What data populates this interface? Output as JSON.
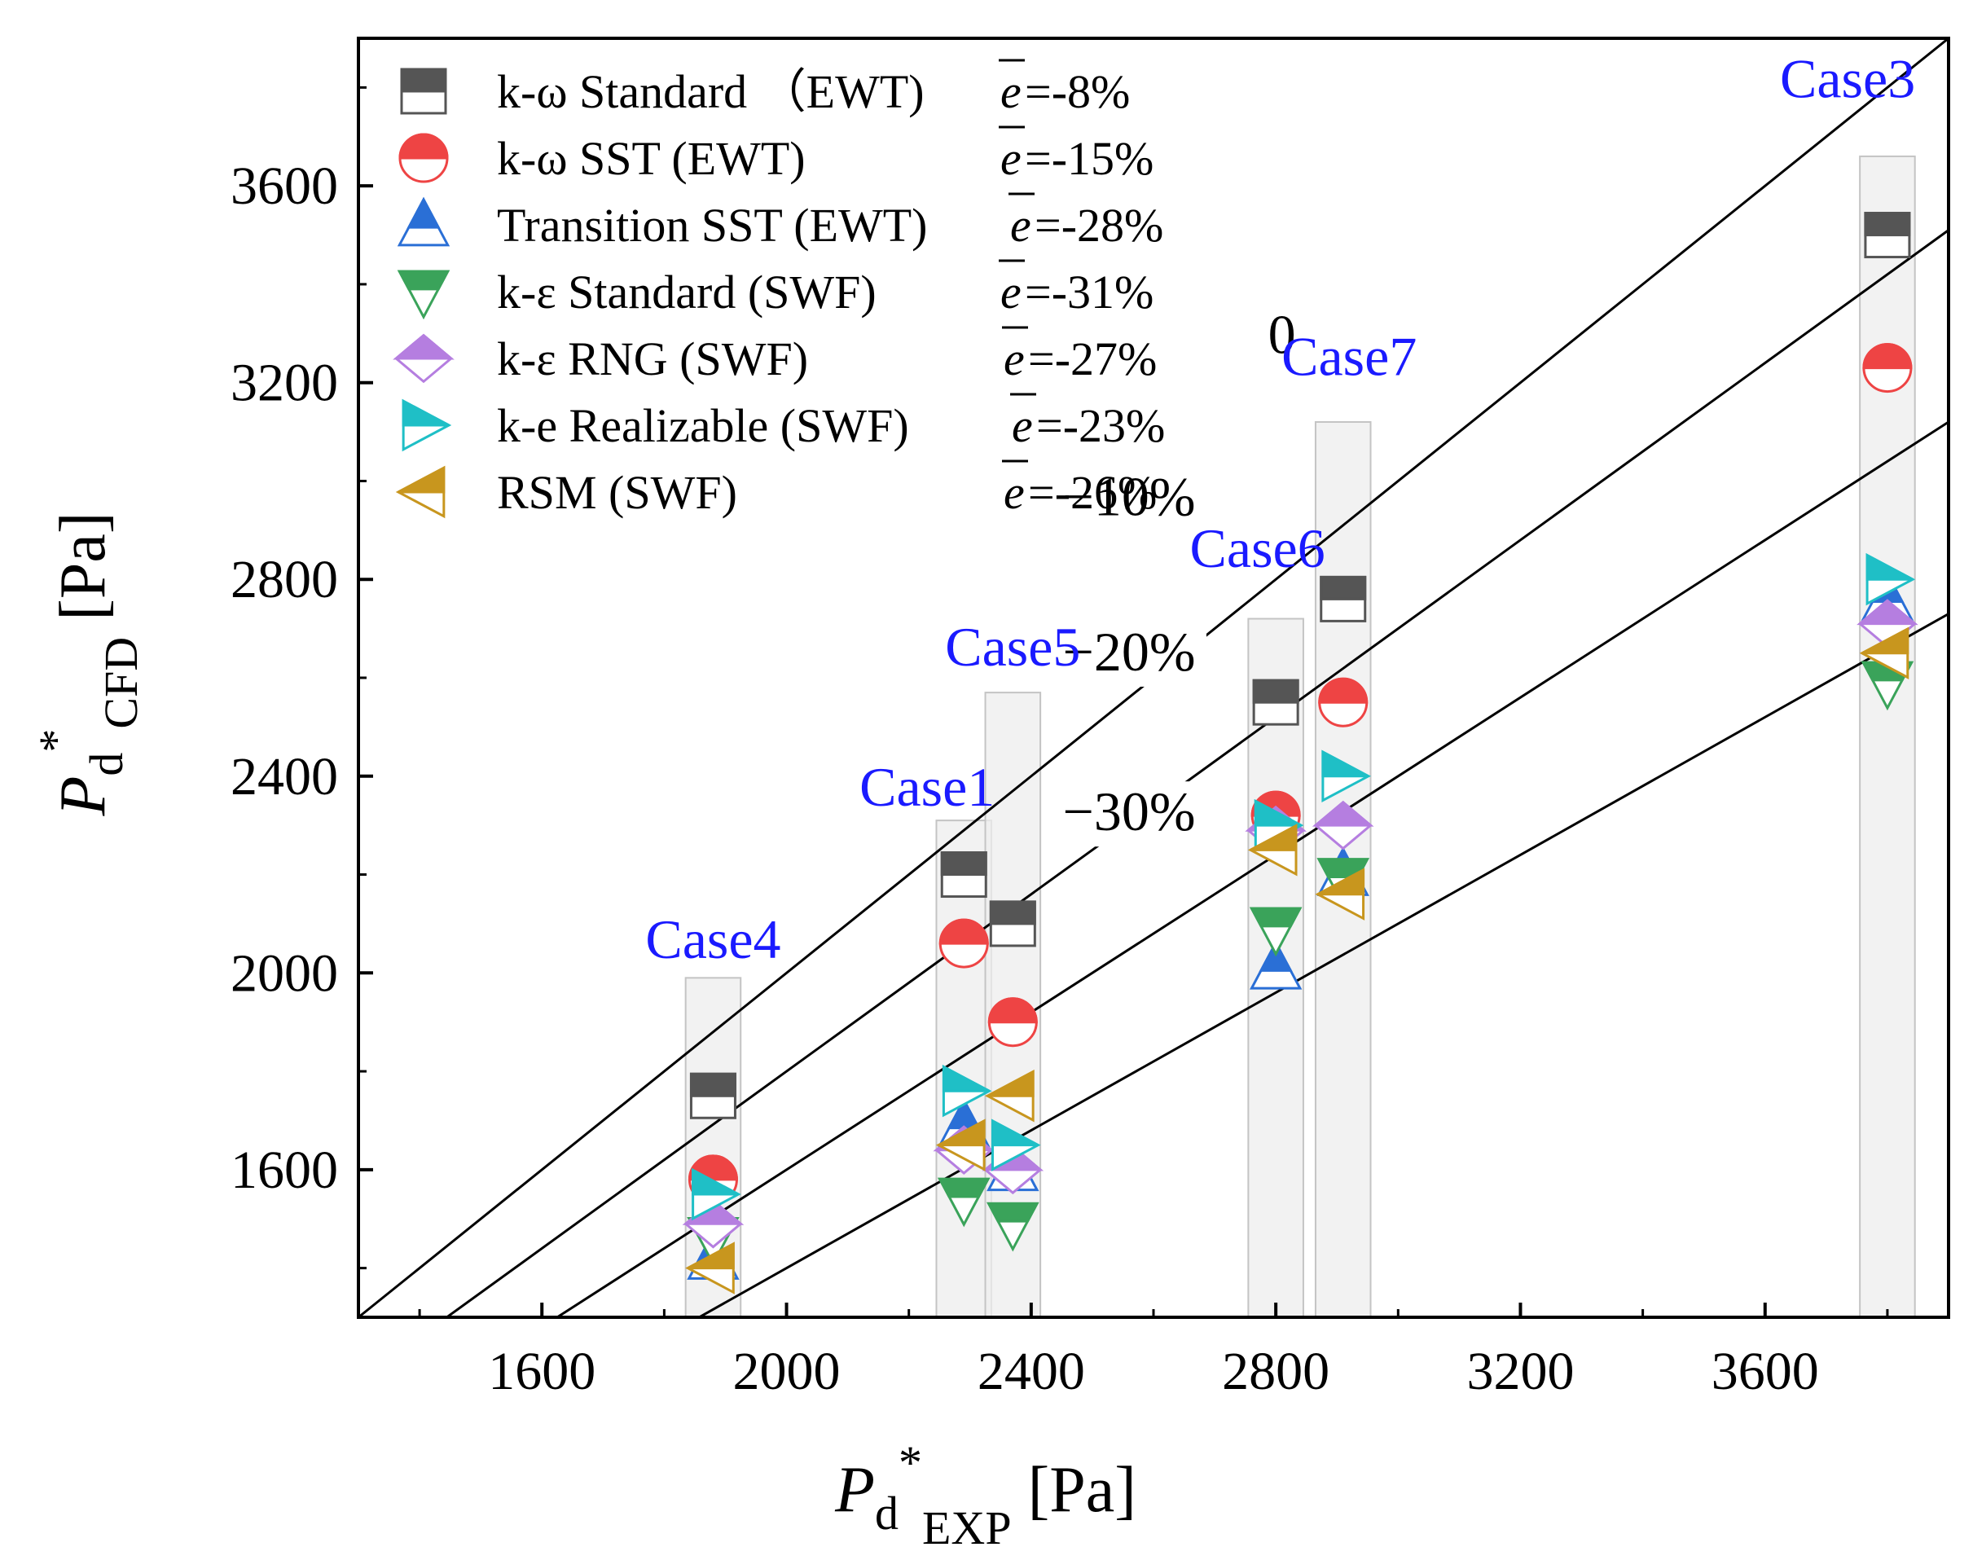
{
  "chart_data": {
    "type": "scatter",
    "title": "",
    "xlabel": {
      "main": "P",
      "sub": "d",
      "sup": "*",
      "sub2": "EXP",
      "unit": " [Pa]"
    },
    "ylabel": {
      "main": "P",
      "sub": "d",
      "sup": "*",
      "sub2": "CFD",
      "unit": " [Pa]"
    },
    "xlim": [
      1300,
      3900
    ],
    "ylim": [
      1300,
      3900
    ],
    "xticks": [
      1600,
      2000,
      2400,
      2800,
      3200,
      3600
    ],
    "yticks": [
      1600,
      2000,
      2400,
      2800,
      3200,
      3600
    ],
    "xtick_labels": [
      "1600",
      "2000",
      "2400",
      "2800",
      "3200",
      "3600"
    ],
    "ytick_labels": [
      "1600",
      "2000",
      "2400",
      "2800",
      "3200",
      "3600"
    ],
    "legend_position": "top-left",
    "series": [
      {
        "name": "k-ω Standard （EWT)",
        "error_label": "=-8%",
        "marker": "square",
        "color": "#555555",
        "points": [
          {
            "x": 1880,
            "y": 1750
          },
          {
            "x": 2290,
            "y": 2200
          },
          {
            "x": 2370,
            "y": 2100
          },
          {
            "x": 2800,
            "y": 2550
          },
          {
            "x": 2910,
            "y": 2760
          },
          {
            "x": 3800,
            "y": 3500
          }
        ]
      },
      {
        "name": "k-ω SST (EWT)",
        "error_label": "=-15%",
        "marker": "circle",
        "color": "#ee4444",
        "points": [
          {
            "x": 1880,
            "y": 1580
          },
          {
            "x": 2290,
            "y": 2060
          },
          {
            "x": 2370,
            "y": 1900
          },
          {
            "x": 2800,
            "y": 2320
          },
          {
            "x": 2910,
            "y": 2550
          },
          {
            "x": 3800,
            "y": 3230
          }
        ]
      },
      {
        "name": "Transition SST (EWT)",
        "error_label": "=-28%",
        "marker": "triangle-up",
        "color": "#2a6fd6",
        "points": [
          {
            "x": 1880,
            "y": 1420
          },
          {
            "x": 2290,
            "y": 1690
          },
          {
            "x": 2370,
            "y": 1600
          },
          {
            "x": 2800,
            "y": 2010
          },
          {
            "x": 2910,
            "y": 2200
          },
          {
            "x": 3800,
            "y": 2760
          }
        ]
      },
      {
        "name": "k-ε Standard (SWF)",
        "error_label": "=-31%",
        "marker": "triangle-down",
        "color": "#3aa35a",
        "points": [
          {
            "x": 1880,
            "y": 1460
          },
          {
            "x": 2290,
            "y": 1540
          },
          {
            "x": 2370,
            "y": 1490
          },
          {
            "x": 2800,
            "y": 2090
          },
          {
            "x": 2910,
            "y": 2190
          },
          {
            "x": 3800,
            "y": 2590
          }
        ]
      },
      {
        "name": "k-ε RNG (SWF)",
        "error_label": "=-27%",
        "marker": "diamond",
        "color": "#b57ee0",
        "points": [
          {
            "x": 1880,
            "y": 1490
          },
          {
            "x": 2290,
            "y": 1640
          },
          {
            "x": 2370,
            "y": 1600
          },
          {
            "x": 2800,
            "y": 2290
          },
          {
            "x": 2910,
            "y": 2300
          },
          {
            "x": 3800,
            "y": 2710
          }
        ]
      },
      {
        "name": "k-e Realizable (SWF)",
        "error_label": "=-23%",
        "marker": "triangle-right",
        "color": "#1fbfc6",
        "points": [
          {
            "x": 1880,
            "y": 1550
          },
          {
            "x": 2290,
            "y": 1760
          },
          {
            "x": 2370,
            "y": 1650
          },
          {
            "x": 2800,
            "y": 2300
          },
          {
            "x": 2910,
            "y": 2400
          },
          {
            "x": 3800,
            "y": 2800
          }
        ]
      },
      {
        "name": "RSM (SWF)",
        "error_label": "=-26%",
        "marker": "triangle-left",
        "color": "#c8961e",
        "points": [
          {
            "x": 1880,
            "y": 1400
          },
          {
            "x": 2290,
            "y": 1650
          },
          {
            "x": 2370,
            "y": 1750
          },
          {
            "x": 2800,
            "y": 2250
          },
          {
            "x": 2910,
            "y": 2160
          },
          {
            "x": 3800,
            "y": 2650
          }
        ]
      }
    ],
    "error_symbol": "e",
    "cases": [
      {
        "label": "Case4",
        "x": 1880,
        "ymin": 1300,
        "ymax": 1990
      },
      {
        "label": "Case1",
        "x": 2290,
        "ymin": 1300,
        "ymax": 2310
      },
      {
        "label": "Case5",
        "x": 2370,
        "ymin": 1300,
        "ymax": 2570
      },
      {
        "label": "Case6",
        "x": 2800,
        "ymin": 1300,
        "ymax": 2720
      },
      {
        "label": "Case7",
        "x": 2910,
        "ymin": 1300,
        "ymax": 3120
      },
      {
        "label": "Case3",
        "x": 3800,
        "ymin": 1300,
        "ymax": 3660
      }
    ],
    "reference_lines": [
      {
        "label": "0",
        "ratio": 1.0
      },
      {
        "label": "−10%",
        "ratio": 0.9
      },
      {
        "label": "−20%",
        "ratio": 0.8
      },
      {
        "label": "−30%",
        "ratio": 0.7
      }
    ]
  }
}
